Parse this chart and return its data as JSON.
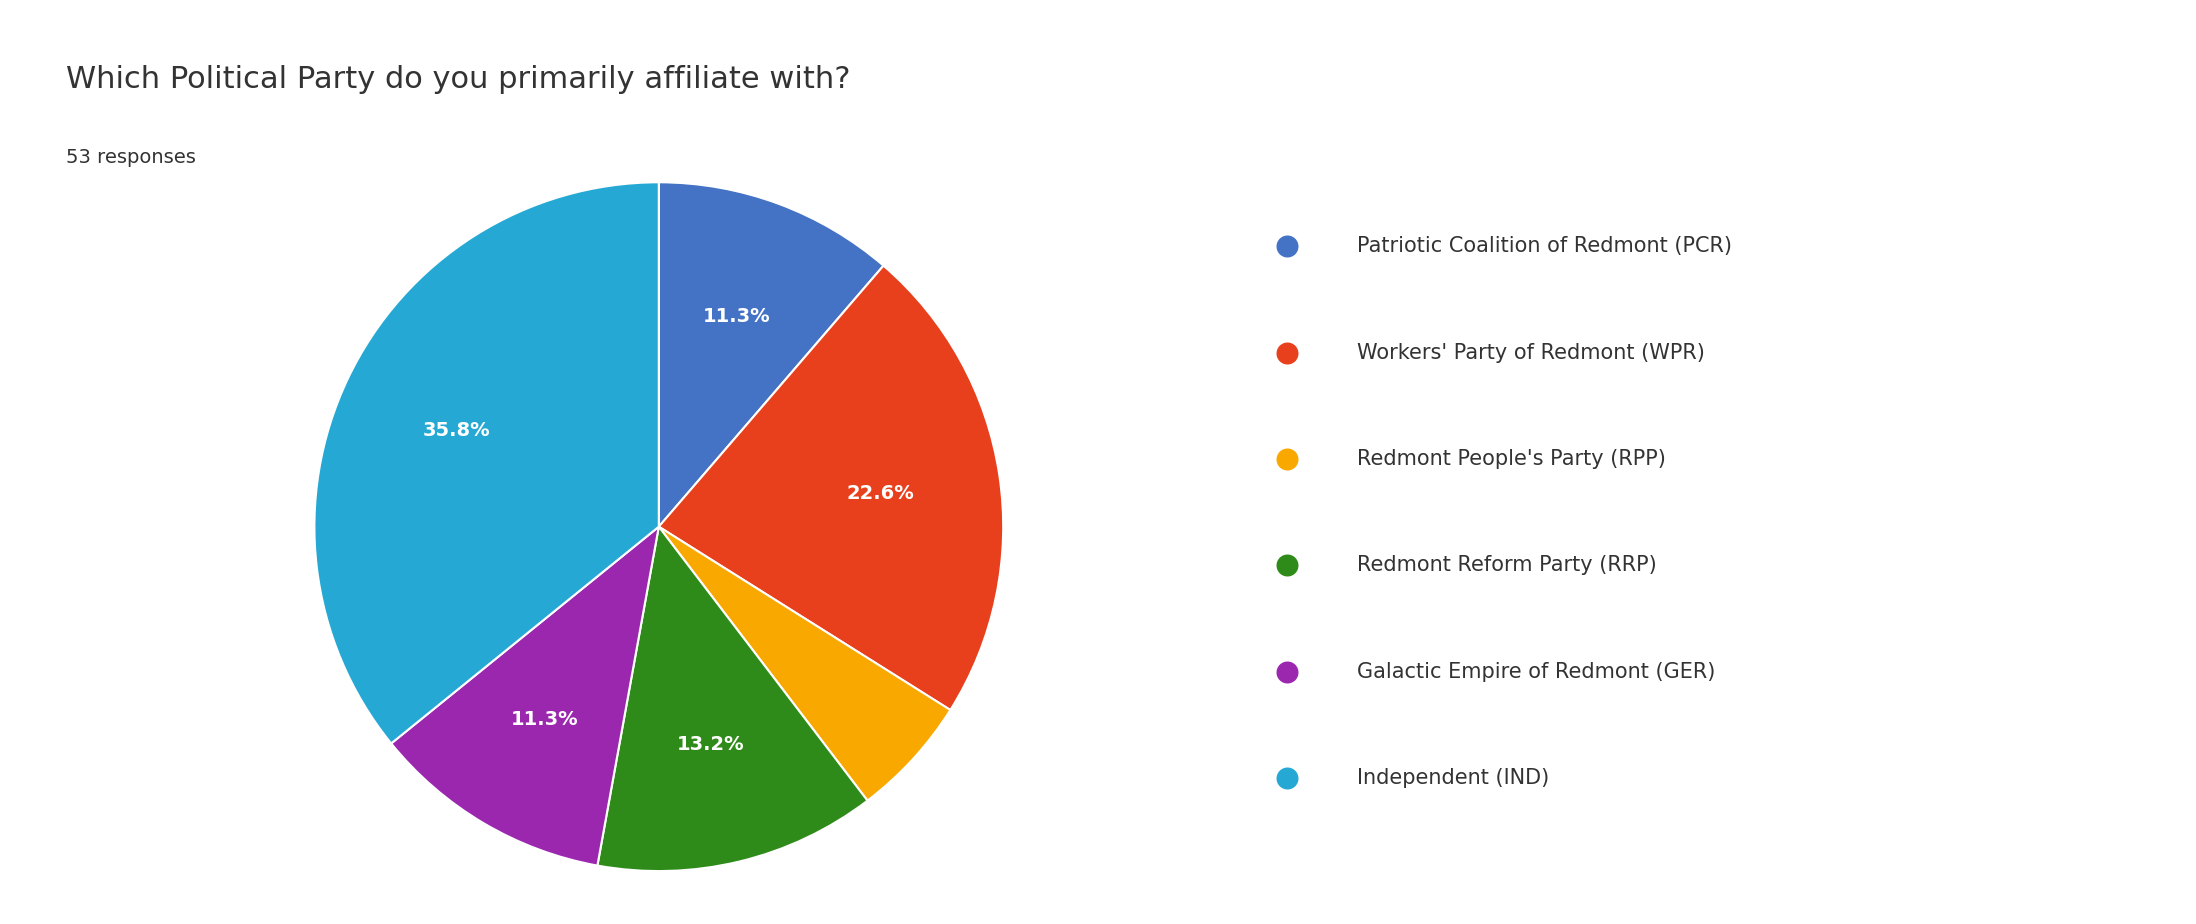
{
  "title": "Which Political Party do you primarily affiliate with?",
  "subtitle": "53 responses",
  "labels": [
    "Patriotic Coalition of Redmont (PCR)",
    "Workers' Party of Redmont (WPR)",
    "Redmont People's Party (RPP)",
    "Redmont Reform Party (RRP)",
    "Galactic Empire of Redmont (GER)",
    "Independent (IND)"
  ],
  "percentages": [
    11.3,
    22.6,
    5.7,
    13.2,
    11.3,
    35.8
  ],
  "colors": [
    "#4472C4",
    "#E8401C",
    "#F9A800",
    "#2E8B1A",
    "#9B27AF",
    "#25A9D4"
  ],
  "hide_label_threshold": 6.0,
  "title_fontsize": 22,
  "subtitle_fontsize": 14,
  "legend_fontsize": 15,
  "autopct_fontsize": 14,
  "background_color": "#ffffff",
  "text_color": "#333333"
}
